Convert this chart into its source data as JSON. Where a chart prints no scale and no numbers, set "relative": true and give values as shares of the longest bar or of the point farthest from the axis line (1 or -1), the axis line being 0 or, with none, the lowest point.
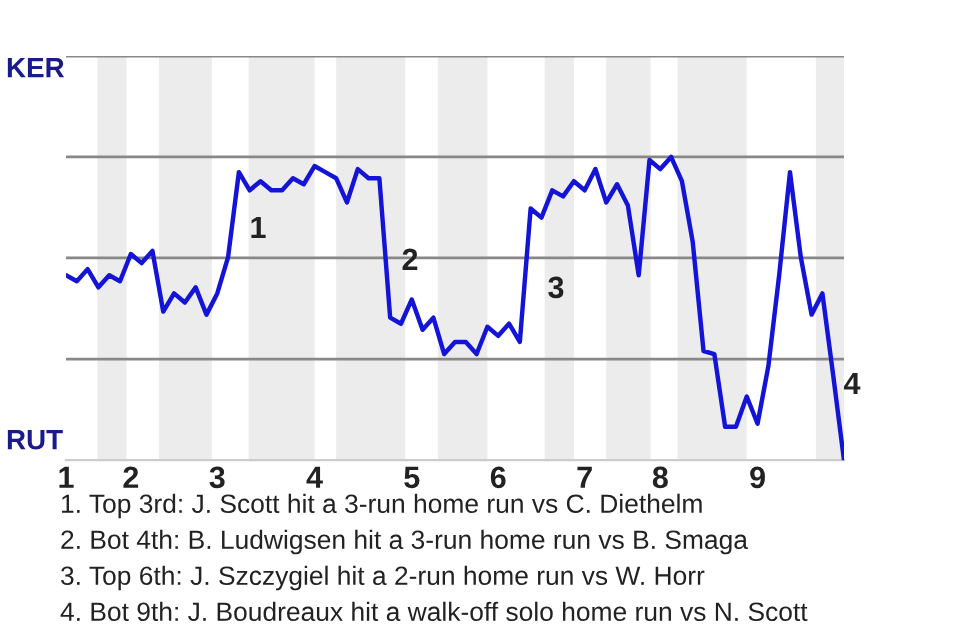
{
  "chart_data": {
    "type": "line",
    "relative": true,
    "categories": [
      "1",
      null,
      null,
      null,
      null,
      null,
      "2",
      null,
      null,
      null,
      null,
      null,
      null,
      null,
      "3",
      null,
      null,
      null,
      null,
      null,
      null,
      null,
      null,
      "4",
      null,
      null,
      null,
      null,
      null,
      null,
      null,
      null,
      "5",
      null,
      null,
      null,
      null,
      null,
      null,
      null,
      "6",
      null,
      null,
      null,
      null,
      null,
      null,
      null,
      "7",
      null,
      null,
      null,
      null,
      null,
      null,
      "8",
      null,
      null,
      null,
      null,
      null,
      null,
      null,
      null,
      "9",
      null,
      null,
      null,
      null,
      null,
      null,
      null,
      null
    ],
    "series": [
      {
        "color": "#1414d8",
        "values": [
          0.61,
          0.59,
          0.63,
          0.57,
          0.61,
          0.59,
          0.68,
          0.65,
          0.69,
          0.49,
          0.55,
          0.52,
          0.57,
          0.48,
          0.55,
          0.67,
          0.95,
          0.89,
          0.92,
          0.89,
          0.89,
          0.93,
          0.91,
          0.97,
          0.95,
          0.93,
          0.85,
          0.96,
          0.93,
          0.93,
          0.47,
          0.45,
          0.53,
          0.43,
          0.47,
          0.35,
          0.39,
          0.39,
          0.35,
          0.44,
          0.41,
          0.45,
          0.39,
          0.83,
          0.8,
          0.89,
          0.87,
          0.92,
          0.89,
          0.96,
          0.85,
          0.91,
          0.84,
          0.61,
          0.99,
          0.96,
          1,
          0.92,
          0.72,
          0.36,
          0.35,
          0.11,
          0.11,
          0.21,
          0.12,
          0.31,
          0.61,
          0.95,
          0.67,
          0.48,
          0.55,
          0.28,
          0
        ]
      }
    ],
    "ref_lines": [
      {
        "axis": "y",
        "value": 0.333,
        "color": "#888888"
      },
      {
        "axis": "y",
        "value": 0.667,
        "color": "#888888"
      },
      {
        "axis": "y",
        "value": 1,
        "color": "#888888"
      },
      {
        "axis": "y",
        "value": 1.333,
        "color": "#888888"
      }
    ],
    "annotations": [
      "KER",
      "RUT",
      "1",
      "2",
      "3",
      "4",
      "1. Top 3rd: J. Scott hit a 3-run home run vs C. Diethelm",
      "2. Bot 4th: B. Ludwigsen hit a 3-run home run vs B. Smaga",
      "3. Top 6th: J. Szczygiel hit a 2-run home run vs W. Horr",
      "4. Bot 9th: J. Boudreaux hit a walk-off solo home run vs N. Scott"
    ]
  }
}
